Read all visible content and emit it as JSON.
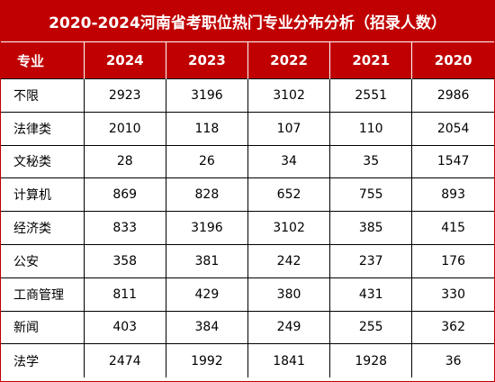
{
  "title": "2020-2024河南省考职位热门专业分布分析（招录人数）",
  "headers": [
    "专业",
    "2024",
    "2023",
    "2022",
    "2021",
    "2020"
  ],
  "rows": [
    [
      "不限",
      "2923",
      "3196",
      "3102",
      "2551",
      "2986"
    ],
    [
      "法律类",
      "2010",
      "118",
      "107",
      "110",
      "2054"
    ],
    [
      "文秘类",
      "28",
      "26",
      "34",
      "35",
      "1547"
    ],
    [
      "计算机",
      "869",
      "828",
      "652",
      "755",
      "893"
    ],
    [
      "经济类",
      "833",
      "3196",
      "3102",
      "385",
      "415"
    ],
    [
      "公安",
      "358",
      "381",
      "242",
      "237",
      "176"
    ],
    [
      "工商管理",
      "811",
      "429",
      "380",
      "431",
      "330"
    ],
    [
      "新闻",
      "403",
      "384",
      "249",
      "255",
      "362"
    ],
    [
      "法学",
      "2474",
      "1992",
      "1841",
      "1928",
      "36"
    ]
  ],
  "colors": {
    "header_bg": "#c00000",
    "header_text": "#ffffff",
    "grid": "#000000"
  }
}
